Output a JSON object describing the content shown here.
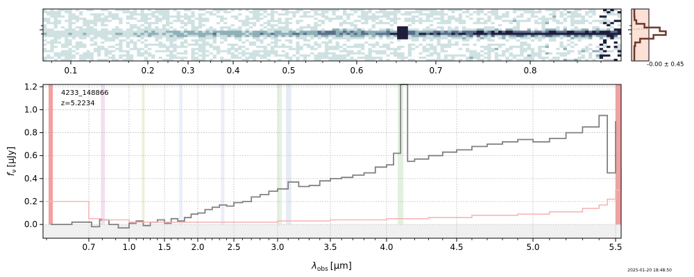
{
  "chart_data": [
    {
      "type": "heatmap",
      "x_ticks": [
        "0.1",
        "0.2",
        "0.3",
        "0.4",
        "0.5",
        "0.6",
        "0.7",
        "0.8"
      ],
      "colormap": [
        "#ffffff",
        "#cfe1e1",
        "#8fb0b8",
        "#5b6f8c",
        "#1e1e3c"
      ],
      "emission_feature_x": 0.655
    },
    {
      "type": "histogram",
      "label": "-0.00 ± 0.45",
      "color": "#6b3a2e",
      "fill": "#fde0d6"
    },
    {
      "type": "line",
      "annotation": [
        "4233_148866",
        "z=5.2234"
      ],
      "xlabel_base": "λ",
      "xlabel_sub": "obs",
      "xlabel_unit": "[μm]",
      "ylabel_base": "f",
      "ylabel_sub": "ν",
      "ylabel_unit": "[μJy]",
      "x_scale": "spectral",
      "xlim": [
        0.6,
        5.53
      ],
      "ylim": [
        -0.12,
        1.22
      ],
      "x_ticks": [
        "0.7",
        "1.0",
        "1.5",
        "2.0",
        "2.5",
        "3.0",
        "3.5",
        "4.0",
        "4.5",
        "5.0",
        "5.5"
      ],
      "y_ticks": [
        "0.0",
        "0.2",
        "0.4",
        "0.6",
        "0.8",
        "1.0",
        "1.2"
      ],
      "grid": true,
      "series": [
        {
          "color": "#808080",
          "x": [
            0.61,
            0.66,
            0.72,
            0.78,
            0.85,
            0.92,
            1.0,
            1.1,
            1.2,
            1.3,
            1.4,
            1.5,
            1.6,
            1.7,
            1.8,
            1.9,
            2.0,
            2.1,
            2.2,
            2.3,
            2.4,
            2.5,
            2.6,
            2.7,
            2.8,
            2.9,
            3.0,
            3.1,
            3.2,
            3.3,
            3.4,
            3.5,
            3.6,
            3.7,
            3.8,
            3.9,
            4.0,
            4.05,
            4.1,
            4.15,
            4.2,
            4.3,
            4.4,
            4.5,
            4.6,
            4.7,
            4.8,
            4.9,
            5.0,
            5.1,
            5.2,
            5.3,
            5.4,
            5.45,
            5.5
          ],
          "y": [
            0.0,
            0.02,
            -0.02,
            0.04,
            0.0,
            -0.03,
            0.01,
            0.03,
            -0.01,
            0.02,
            0.04,
            0.01,
            0.05,
            0.03,
            0.06,
            0.09,
            0.1,
            0.13,
            0.15,
            0.17,
            0.16,
            0.19,
            0.2,
            0.24,
            0.26,
            0.29,
            0.31,
            0.37,
            0.33,
            0.34,
            0.38,
            0.4,
            0.41,
            0.43,
            0.45,
            0.5,
            0.52,
            0.62,
            1.22,
            0.55,
            0.57,
            0.6,
            0.63,
            0.65,
            0.68,
            0.7,
            0.72,
            0.74,
            0.72,
            0.75,
            0.8,
            0.85,
            0.95,
            0.45,
            0.9
          ]
        },
        {
          "color": "#f7b5b5",
          "x": [
            0.6,
            0.7,
            0.8,
            1.0,
            1.2,
            1.5,
            2.0,
            2.5,
            3.0,
            3.5,
            4.0,
            4.3,
            4.6,
            4.9,
            5.1,
            5.3,
            5.4,
            5.45,
            5.5,
            5.53
          ],
          "y": [
            0.2,
            0.05,
            0.04,
            0.02,
            0.02,
            0.02,
            0.02,
            0.02,
            0.03,
            0.04,
            0.05,
            0.06,
            0.08,
            0.09,
            0.11,
            0.14,
            0.17,
            0.22,
            0.3,
            0.5
          ]
        }
      ],
      "vbands": [
        {
          "x0": 0.605,
          "x1": 0.615,
          "color": "#f2a0a0"
        },
        {
          "x0": 0.79,
          "x1": 0.82,
          "color": "#f3dff0"
        },
        {
          "x0": 1.18,
          "x1": 1.22,
          "color": "#eef0dc"
        },
        {
          "x0": 1.72,
          "x1": 1.77,
          "color": "#e8f0fb"
        },
        {
          "x0": 2.32,
          "x1": 2.37,
          "color": "#eceef7"
        },
        {
          "x0": 3.0,
          "x1": 3.04,
          "color": "#e6f0e0"
        },
        {
          "x0": 3.08,
          "x1": 3.13,
          "color": "#e6ecf3"
        },
        {
          "x0": 4.08,
          "x1": 4.12,
          "color": "#e2f1df"
        },
        {
          "x0": 5.5,
          "x1": 5.53,
          "color": "#f2a0a0"
        }
      ],
      "hband": {
        "y0": -0.12,
        "y1": 0.0,
        "color": "#f0f0f0"
      }
    }
  ],
  "timestamp": "2025-01-20 18:48:50"
}
